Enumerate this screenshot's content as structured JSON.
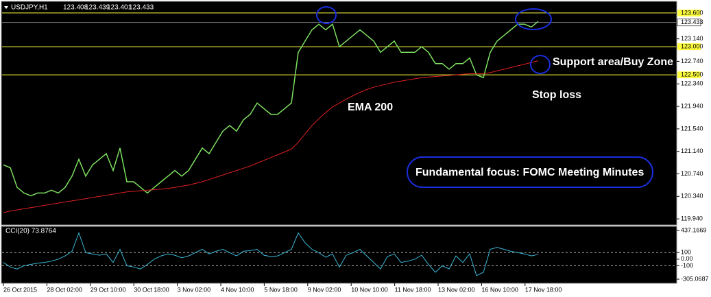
{
  "chart_data": [
    {
      "type": "line",
      "title": "USDJPY,H1",
      "ohlc": [
        123.408,
        123.439,
        123.401,
        123.433
      ],
      "ylim": [
        119.856,
        123.66
      ],
      "yticks": [
        {
          "value": 123.14,
          "label": "123.140"
        },
        {
          "value": 122.74,
          "label": "122.740"
        },
        {
          "value": 122.34,
          "label": "122.340"
        },
        {
          "value": 121.94,
          "label": "121.940"
        },
        {
          "value": 121.54,
          "label": "121.540"
        },
        {
          "value": 121.14,
          "label": "121.140"
        },
        {
          "value": 120.74,
          "label": "120.740"
        },
        {
          "value": 120.34,
          "label": "120.340"
        },
        {
          "value": 119.94,
          "label": "119.940"
        }
      ],
      "levels": [
        {
          "value": 123.6,
          "label": "123.600"
        },
        {
          "value": 123.0,
          "label": "123.000"
        },
        {
          "value": 122.5,
          "label": "122.500"
        }
      ],
      "level_color": "#ffff40",
      "current_price": 123.433,
      "x_labels": [
        "26 Oct 2015",
        "28 Oct 02:00",
        "29 Oct 10:00",
        "30 Oct 18:00",
        "3 Nov 02:00",
        "4 Nov 10:00",
        "5 Nov 18:00",
        "9 Nov 02:00",
        "10 Nov 10:00",
        "11 Nov 18:00",
        "13 Nov 02:00",
        "16 Nov 10:00",
        "17 Nov 18:00"
      ],
      "annotations": [
        "Support area/Buy Zone",
        "Stop loss",
        "EMA 200",
        "Fundamental focus: FOMC Meeting Minutes"
      ],
      "series": [
        {
          "name": "USDJPY",
          "color": "#7ee060",
          "values": [
            120.9,
            120.85,
            120.5,
            120.4,
            120.35,
            120.4,
            120.4,
            120.45,
            120.4,
            120.5,
            120.7,
            121.0,
            120.7,
            120.9,
            121.0,
            121.1,
            120.8,
            121.2,
            120.6,
            120.6,
            120.5,
            120.4,
            120.5,
            120.6,
            120.7,
            120.8,
            120.7,
            120.8,
            121.0,
            121.2,
            121.1,
            121.3,
            121.5,
            121.6,
            121.5,
            121.7,
            121.8,
            122.0,
            121.9,
            121.8,
            121.8,
            121.9,
            122.0,
            122.9,
            123.1,
            123.3,
            123.4,
            123.3,
            123.4,
            123.0,
            123.1,
            123.2,
            123.3,
            123.2,
            123.1,
            122.9,
            123.0,
            123.1,
            122.9,
            122.9,
            122.9,
            123.0,
            122.9,
            122.7,
            122.7,
            122.6,
            122.7,
            122.7,
            122.8,
            122.5,
            122.45,
            122.9,
            123.1,
            123.2,
            123.3,
            123.4,
            123.4,
            123.35,
            123.45
          ]
        },
        {
          "name": "EMA",
          "color": "#e02020",
          "values": [
            120.05,
            120.08,
            120.1,
            120.12,
            120.14,
            120.16,
            120.18,
            120.2,
            120.22,
            120.24,
            120.26,
            120.28,
            120.3,
            120.32,
            120.34,
            120.36,
            120.38,
            120.4,
            120.42,
            120.43,
            120.44,
            120.45,
            120.46,
            120.47,
            120.48,
            120.5,
            120.52,
            120.54,
            120.57,
            120.6,
            120.64,
            120.68,
            120.72,
            120.76,
            120.8,
            120.84,
            120.88,
            120.93,
            120.98,
            121.03,
            121.08,
            121.13,
            121.18,
            121.3,
            121.45,
            121.6,
            121.72,
            121.83,
            121.93,
            122.0,
            122.07,
            122.13,
            122.19,
            122.24,
            122.28,
            122.31,
            122.34,
            122.37,
            122.39,
            122.41,
            122.43,
            122.45,
            122.46,
            122.47,
            122.48,
            122.49,
            122.5,
            122.51,
            122.52,
            122.52,
            122.52,
            122.54,
            122.57,
            122.6,
            122.63,
            122.66,
            122.69,
            122.72,
            122.75
          ]
        }
      ]
    },
    {
      "type": "line",
      "title": "CCI(20) 73.8764",
      "ylim": [
        -357,
        500
      ],
      "yticks": [
        437.1669,
        100,
        {
          "value": 0,
          "label": "0.00"
        },
        -100,
        -305.0687
      ],
      "dashed": [
        100,
        -100
      ],
      "series": [
        {
          "name": "CCI",
          "color": "#3cb8d8",
          "values": [
            -50,
            -120,
            -150,
            -100,
            -80,
            -60,
            -50,
            -30,
            0,
            50,
            120,
            400,
            100,
            80,
            60,
            80,
            -50,
            150,
            -100,
            -120,
            -150,
            -80,
            0,
            50,
            80,
            60,
            20,
            50,
            100,
            150,
            80,
            120,
            150,
            100,
            50,
            120,
            130,
            150,
            60,
            40,
            50,
            100,
            150,
            400,
            250,
            150,
            100,
            30,
            80,
            -120,
            60,
            100,
            150,
            50,
            -50,
            -150,
            40,
            80,
            -50,
            -30,
            0,
            60,
            -80,
            -200,
            -100,
            -150,
            50,
            -50,
            80,
            -250,
            -200,
            150,
            180,
            150,
            120,
            100,
            80,
            50,
            73.88
          ]
        }
      ]
    }
  ]
}
